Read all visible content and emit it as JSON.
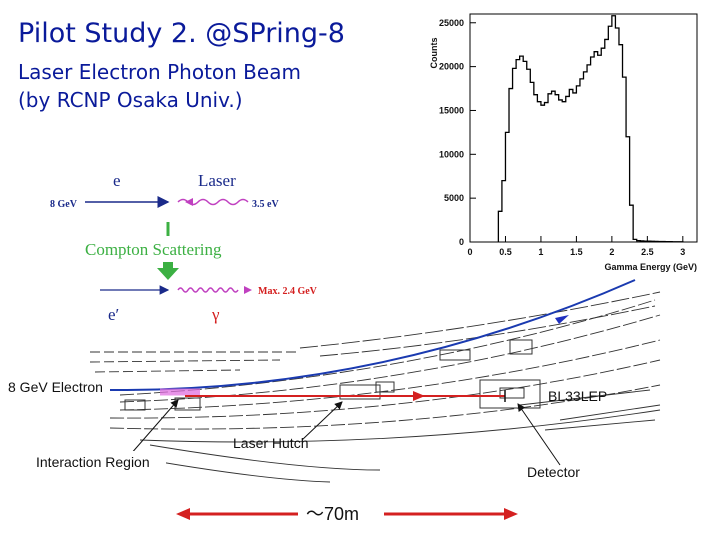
{
  "slide": {
    "title": "Pilot Study 2. @SPring-8",
    "subtitle_line1": "Laser Electron Photon Beam",
    "subtitle_line2": "(by RCNP Osaka Univ.)"
  },
  "compton": {
    "electron": "e",
    "laser": "Laser",
    "electron_energy": "8 GeV",
    "laser_energy": "3.5 eV",
    "process": "Compton Scattering",
    "scattered_electron": "e′",
    "photon": "γ",
    "max_energy": "Max. 2.4 GeV"
  },
  "beamline": {
    "electron_label": "8 GeV Electron",
    "beamline_name": "BL33LEP",
    "interaction_region": "Interaction Region",
    "laser_hutch": "Laser Hutch",
    "detector": "Detector",
    "distance": "～70m"
  },
  "colors": {
    "title": "#0a1a9a",
    "compton_green": "#3cb043",
    "laser_magenta": "#c040c0",
    "photon_red": "#d42020",
    "electron_navy": "#1a2a8a",
    "histogram": "#000000"
  },
  "chart_data": {
    "type": "bar",
    "ylabel": "Counts",
    "xlabel": "Gamma Energy (GeV)",
    "xlim": [
      0,
      3.2
    ],
    "ylim": [
      0,
      26000
    ],
    "xticks": [
      "0",
      "0.5",
      "1",
      "1.5",
      "2",
      "2.5",
      "3"
    ],
    "xtick_values": [
      0,
      0.5,
      1,
      1.5,
      2,
      2.5,
      3
    ],
    "yticks": [
      "0",
      "5000",
      "10000",
      "15000",
      "20000",
      "25000"
    ],
    "ytick_values": [
      0,
      5000,
      10000,
      15000,
      20000,
      25000
    ],
    "bin_width": 0.05,
    "x": [
      0.4,
      0.45,
      0.5,
      0.55,
      0.6,
      0.65,
      0.7,
      0.75,
      0.8,
      0.85,
      0.9,
      0.95,
      1.0,
      1.05,
      1.1,
      1.15,
      1.2,
      1.25,
      1.3,
      1.35,
      1.4,
      1.45,
      1.5,
      1.55,
      1.6,
      1.65,
      1.7,
      1.75,
      1.8,
      1.85,
      1.9,
      1.95,
      2.0,
      2.05,
      2.1,
      2.15,
      2.2,
      2.25,
      2.3,
      2.35,
      2.4,
      2.45,
      2.5,
      2.55,
      2.6,
      2.65,
      2.7,
      2.75,
      2.8,
      2.85,
      2.9,
      2.95
    ],
    "values": [
      3500,
      7000,
      12500,
      17500,
      19800,
      20800,
      21200,
      20600,
      19700,
      18200,
      16800,
      16000,
      15600,
      15900,
      16900,
      17200,
      16800,
      16200,
      16000,
      16600,
      17400,
      17000,
      17800,
      18600,
      19400,
      20200,
      21100,
      21700,
      21300,
      22100,
      23100,
      24600,
      25800,
      24400,
      22500,
      18800,
      12000,
      4200,
      300,
      150,
      120,
      100,
      90,
      80,
      70,
      60,
      50,
      40,
      40,
      30,
      30,
      20
    ]
  }
}
